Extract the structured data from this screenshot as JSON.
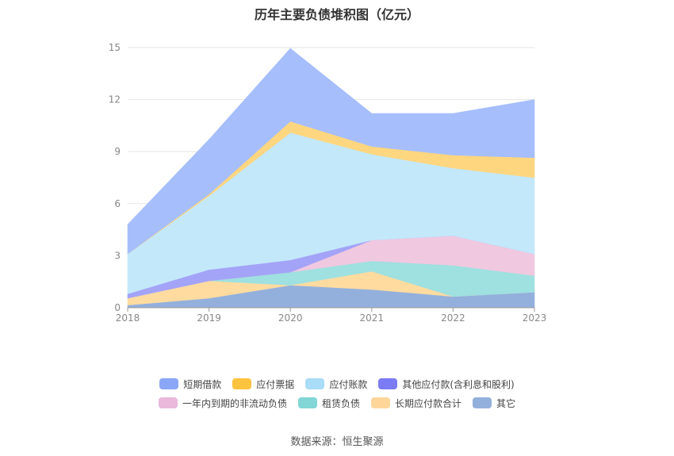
{
  "chart_data": {
    "type": "area",
    "stacked": true,
    "title": "历年主要负债堆积图（亿元）",
    "categories": [
      "2018",
      "2019",
      "2020",
      "2021",
      "2022",
      "2023"
    ],
    "ylim": [
      0,
      15
    ],
    "yticks": [
      "0",
      "3",
      "6",
      "9",
      "12",
      "15"
    ],
    "grid": true,
    "legend_position": "bottom",
    "series": [
      {
        "name": "其它",
        "color": "#93b0dd",
        "values": [
          0.15,
          0.55,
          1.3,
          1.05,
          0.65,
          0.9
        ]
      },
      {
        "name": "长期应付款合计",
        "color": "#ffdba0",
        "values": [
          0.4,
          1.0,
          0.0,
          1.05,
          0.0,
          0.0
        ]
      },
      {
        "name": "租赁负债",
        "color": "#9fe0e0",
        "values": [
          0.0,
          0.0,
          0.75,
          0.6,
          1.8,
          0.95
        ]
      },
      {
        "name": "一年内到期的非流动负债",
        "color": "#f0c8e0",
        "values": [
          0.0,
          0.0,
          0.0,
          1.2,
          1.7,
          1.25
        ]
      },
      {
        "name": "其他应付款(含利息和股利)",
        "color": "#a3a3f7",
        "values": [
          0.25,
          0.65,
          0.7,
          0.0,
          0.0,
          0.0
        ]
      },
      {
        "name": "应付账款",
        "color": "#c3e8fa",
        "values": [
          2.3,
          4.25,
          7.35,
          4.95,
          3.9,
          4.4
        ]
      },
      {
        "name": "应付票据",
        "color": "#fed680",
        "values": [
          0.0,
          0.1,
          0.65,
          0.45,
          0.75,
          1.15
        ]
      },
      {
        "name": "短期借款",
        "color": "#a6befc",
        "values": [
          1.7,
          3.15,
          4.2,
          1.9,
          2.4,
          3.35
        ]
      }
    ]
  },
  "legend": [
    [
      {
        "label": "短期借款",
        "color": "#8aa6f6"
      },
      {
        "label": "应付票据",
        "color": "#fdc33e"
      },
      {
        "label": "应付账款",
        "color": "#a9dcf6"
      },
      {
        "label": "其他应付款(含利息和股利)",
        "color": "#7b7bf5"
      }
    ],
    [
      {
        "label": "一年内到期的非流动负债",
        "color": "#e9b8db"
      },
      {
        "label": "租赁负债",
        "color": "#82d6d6"
      },
      {
        "label": "长期应付款合计",
        "color": "#ffd79b"
      },
      {
        "label": "其它",
        "color": "#93b0dd"
      }
    ]
  ],
  "source": "数据来源：恒生聚源"
}
